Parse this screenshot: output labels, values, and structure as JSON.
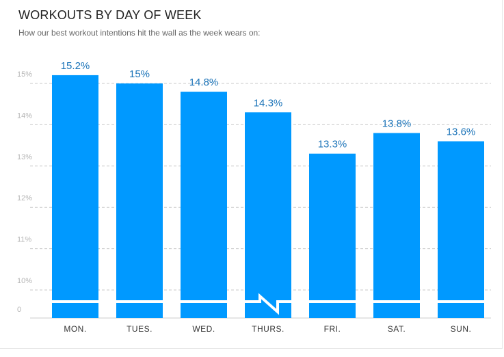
{
  "chart_data": {
    "type": "bar",
    "title": "WORKOUTS BY DAY OF WEEK",
    "subtitle": "How our best workout intentions hit the wall as the week wears on:",
    "categories": [
      "MON.",
      "TUES.",
      "WED.",
      "THURS.",
      "FRI.",
      "SAT.",
      "SUN."
    ],
    "values": [
      15.2,
      15,
      14.8,
      14.3,
      13.3,
      13.8,
      13.6
    ],
    "data_labels": [
      "15.2%",
      "15%",
      "14.8%",
      "14.3%",
      "13.3%",
      "13.8%",
      "13.6%"
    ],
    "y_ticks": [
      "0",
      "10%",
      "11%",
      "12%",
      "13%",
      "14%",
      "15%"
    ],
    "ylim": [
      9.7,
      15.5
    ],
    "axis_break": true,
    "grid": true,
    "colors": {
      "bar": "#0099ff",
      "label": "#1a73b8",
      "grid": "#c8c8c8",
      "axis": "#cccccc"
    }
  }
}
